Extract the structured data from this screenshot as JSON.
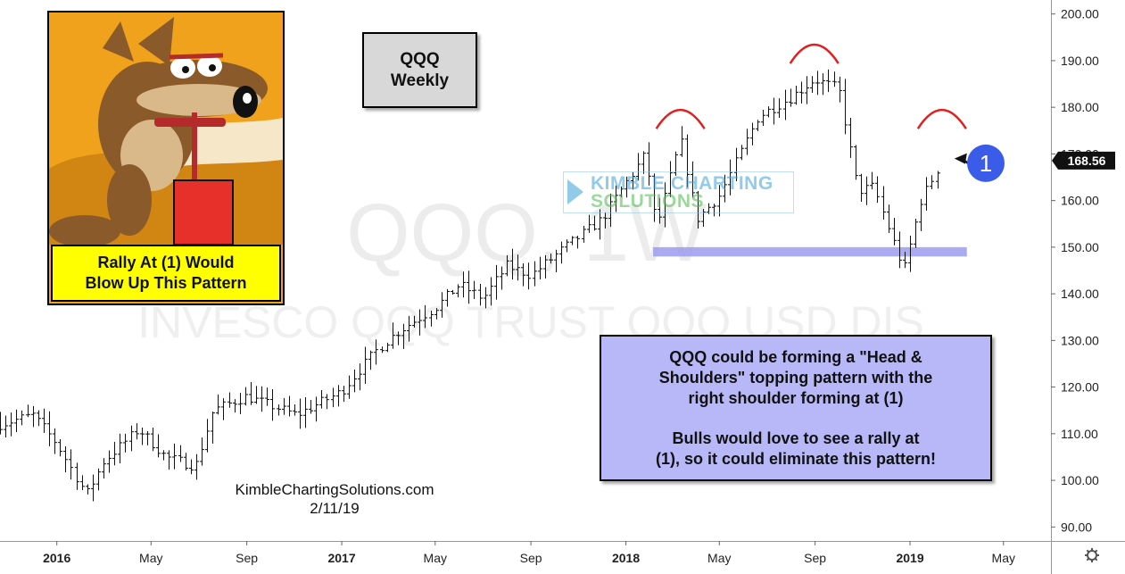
{
  "chart_data": {
    "type": "ohlc",
    "title": "QQQ Weekly",
    "symbol": "QQQ",
    "interval": "1W",
    "watermark_symbol": "QQQ, 1W",
    "watermark_name": "INVESCO QQQ TRUST QQQ USD DIS",
    "ylim": [
      87,
      203
    ],
    "y_ticks": [
      90,
      100,
      110,
      120,
      130,
      140,
      150,
      160,
      170,
      180,
      190,
      200
    ],
    "y_tick_labels": [
      "90.00",
      "100.00",
      "110.00",
      "120.00",
      "130.00",
      "140.00",
      "150.00",
      "160.00",
      "170.00",
      "180.00",
      "190.00",
      "200.00"
    ],
    "last_price": 168.56,
    "last_price_label": "168.56",
    "x_range": [
      "2015-10-20",
      "2019-07-01"
    ],
    "x_ticks": [
      {
        "date": "2016-01-01",
        "label": "2016",
        "bold": true
      },
      {
        "date": "2016-05-01",
        "label": "May",
        "bold": false
      },
      {
        "date": "2016-09-01",
        "label": "Sep",
        "bold": false
      },
      {
        "date": "2017-01-01",
        "label": "2017",
        "bold": true
      },
      {
        "date": "2017-05-01",
        "label": "May",
        "bold": false
      },
      {
        "date": "2017-09-01",
        "label": "Sep",
        "bold": false
      },
      {
        "date": "2018-01-01",
        "label": "2018",
        "bold": true
      },
      {
        "date": "2018-05-01",
        "label": "May",
        "bold": false
      },
      {
        "date": "2018-09-01",
        "label": "Sep",
        "bold": false
      },
      {
        "date": "2019-01-01",
        "label": "2019",
        "bold": true
      },
      {
        "date": "2019-05-01",
        "label": "May",
        "bold": false
      }
    ],
    "price_path": [
      [
        "2015-10-20",
        112
      ],
      [
        "2015-12-01",
        114
      ],
      [
        "2015-12-31",
        108
      ],
      [
        "2016-02-08",
        97
      ],
      [
        "2016-03-01",
        104
      ],
      [
        "2016-04-15",
        111
      ],
      [
        "2016-05-20",
        105
      ],
      [
        "2016-06-27",
        103
      ],
      [
        "2016-07-20",
        115
      ],
      [
        "2016-08-31",
        118
      ],
      [
        "2016-11-04",
        114
      ],
      [
        "2016-12-31",
        119
      ],
      [
        "2017-02-15",
        128
      ],
      [
        "2017-03-15",
        132
      ],
      [
        "2017-05-01",
        137
      ],
      [
        "2017-06-01",
        142
      ],
      [
        "2017-07-01",
        139
      ],
      [
        "2017-08-01",
        146
      ],
      [
        "2017-09-01",
        144
      ],
      [
        "2017-10-15",
        150
      ],
      [
        "2017-12-01",
        156
      ],
      [
        "2018-01-26",
        170
      ],
      [
        "2018-02-09",
        154
      ],
      [
        "2018-03-12",
        173
      ],
      [
        "2018-04-02",
        156
      ],
      [
        "2018-05-01",
        161
      ],
      [
        "2018-06-20",
        178
      ],
      [
        "2018-07-31",
        182
      ],
      [
        "2018-08-31",
        186
      ],
      [
        "2018-10-01",
        184
      ],
      [
        "2018-10-26",
        162
      ],
      [
        "2018-11-15",
        163
      ],
      [
        "2018-12-24",
        145
      ],
      [
        "2019-01-15",
        160
      ],
      [
        "2019-02-11",
        168.56
      ]
    ],
    "support_zone": {
      "low": 148,
      "high": 150,
      "from": "2018-02-05",
      "to": "2019-03-15"
    },
    "pattern_arcs": [
      {
        "name": "left-shoulder",
        "date": "2018-03-12",
        "peak": 180
      },
      {
        "name": "head",
        "date": "2018-08-31",
        "peak": 194
      },
      {
        "name": "right-shoulder",
        "date": "2019-02-11",
        "peak": 180
      }
    ],
    "marker": {
      "label": "1",
      "date": "2019-02-11",
      "price": 169
    },
    "colors": {
      "bars": "#111111",
      "arcs": "#e02020",
      "support": "#9c9cf0",
      "marker": "#3a5ce8",
      "price_badge": "#111111"
    }
  },
  "header": {
    "title_line1": "QQQ",
    "title_line2": "Weekly"
  },
  "coyote": {
    "caption_line1": "Rally At (1) Would",
    "caption_line2": "Blow Up This Pattern"
  },
  "annotation": {
    "line1": "QQQ could be forming a \"Head &",
    "line2": "Shoulders\" topping pattern with the",
    "line3": "right shoulder forming at (1)",
    "line4": "Bulls would love to see a rally at",
    "line5": "(1), so it could eliminate this pattern!"
  },
  "credit": {
    "site": "KimbleChartingSolutions.com",
    "date": "2/11/19"
  },
  "watermark_logo": {
    "line1": "KIMBLE CHARTING",
    "line2": "SOLUTIONS"
  },
  "icons": {
    "settings": "gear-icon",
    "price_flag": "flag-icon"
  }
}
